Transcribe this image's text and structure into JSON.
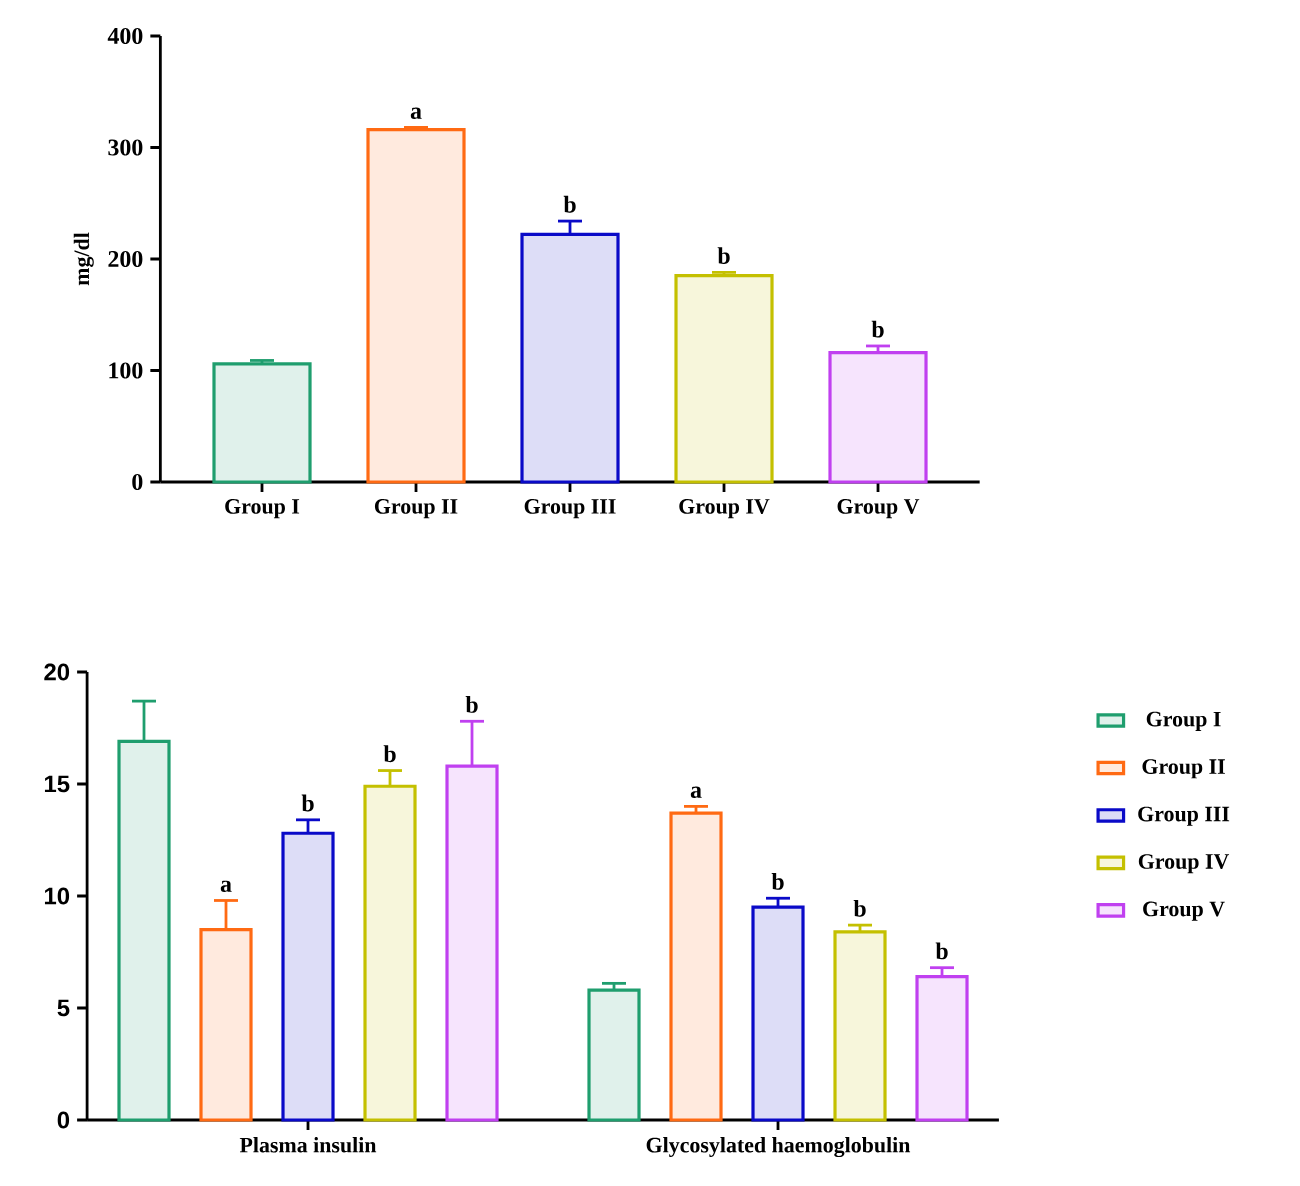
{
  "chart_data": [
    {
      "type": "bar",
      "ylabel": "mg/dl",
      "categories": [
        "Group I",
        "Group II",
        "Group III",
        "Group IV",
        "Group V"
      ],
      "values": [
        106,
        316,
        222,
        185,
        116
      ],
      "errors": [
        [
          106,
          109
        ],
        [
          316,
          318
        ],
        [
          222,
          234
        ],
        [
          185,
          188
        ],
        [
          116,
          122
        ]
      ],
      "value_labels": [
        null,
        "a",
        "b",
        "b",
        "b"
      ],
      "colors": [
        "#1f9e6e",
        "#ff6a13",
        "#0a0ac8",
        "#c4c000",
        "#c040f0"
      ],
      "ylim": [
        0,
        400
      ],
      "yticks": [
        0,
        100,
        200,
        300,
        400
      ]
    },
    {
      "type": "bar",
      "categories": [
        "Plasma insulin",
        "Glycosylated haemoglobulin"
      ],
      "series": [
        {
          "name": "Group I",
          "color": "#1f9e6e",
          "values": [
            16.9,
            5.8
          ],
          "errors": [
            [
              16.9,
              18.7
            ],
            [
              5.8,
              6.1
            ]
          ],
          "value_labels": [
            null,
            null
          ]
        },
        {
          "name": "Group II",
          "color": "#ff6a13",
          "values": [
            8.5,
            13.7
          ],
          "errors": [
            [
              8.5,
              9.8
            ],
            [
              13.7,
              14.0
            ]
          ],
          "value_labels": [
            "a",
            "a"
          ]
        },
        {
          "name": "Group III",
          "color": "#0a0ac8",
          "values": [
            12.8,
            9.5
          ],
          "errors": [
            [
              12.8,
              13.4
            ],
            [
              9.5,
              9.9
            ]
          ],
          "value_labels": [
            "b",
            "b"
          ]
        },
        {
          "name": "Group IV",
          "color": "#c4c000",
          "values": [
            14.9,
            8.4
          ],
          "errors": [
            [
              14.9,
              15.6
            ],
            [
              8.4,
              8.7
            ]
          ],
          "value_labels": [
            "b",
            "b"
          ]
        },
        {
          "name": "Group V",
          "color": "#c040f0",
          "values": [
            15.8,
            6.4
          ],
          "errors": [
            [
              15.8,
              17.8
            ],
            [
              6.4,
              6.8
            ]
          ],
          "value_labels": [
            "b",
            "b"
          ]
        }
      ],
      "ylim": [
        0,
        20
      ],
      "yticks": [
        0,
        5,
        10,
        15,
        20
      ],
      "legend": "right"
    }
  ]
}
